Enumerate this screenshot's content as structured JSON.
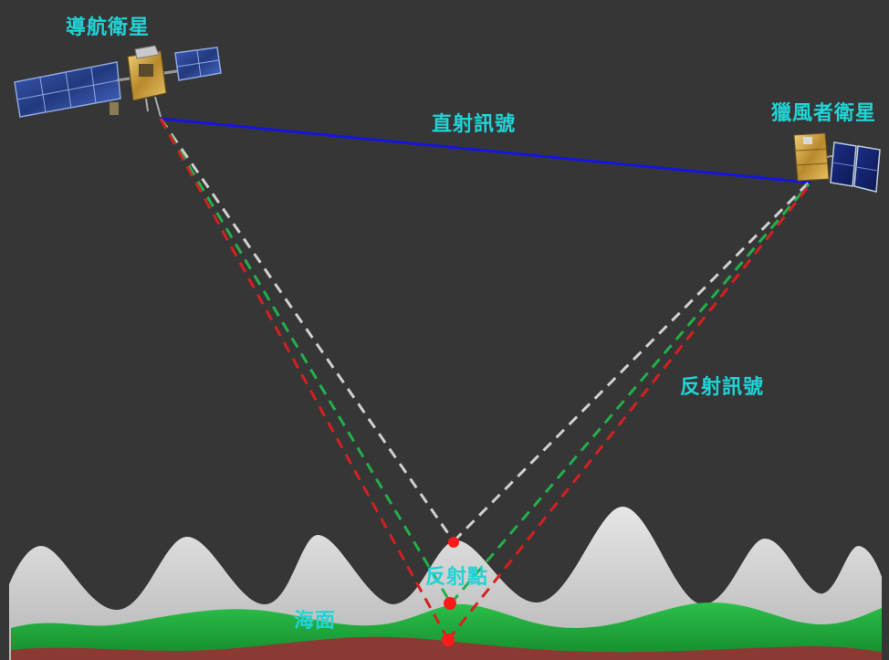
{
  "labels": {
    "nav_sat": "導航衛星",
    "hunter_sat": "獵風者衛星",
    "direct_signal": "直射訊號",
    "reflected_signal": "反射訊號",
    "reflection_point": "反射點",
    "sea_surface": "海面"
  },
  "colors": {
    "background": "#363636",
    "label": "#22d3d6",
    "direct_line": "#1515e0",
    "ray_gray": "#d0d0d0",
    "ray_green": "#22b04a",
    "ray_red": "#d42020",
    "wave_gray": "#cfcfcf",
    "wave_green": "#1fa83c",
    "wave_red": "#8a3a33",
    "point": "#ff1a1a"
  }
}
